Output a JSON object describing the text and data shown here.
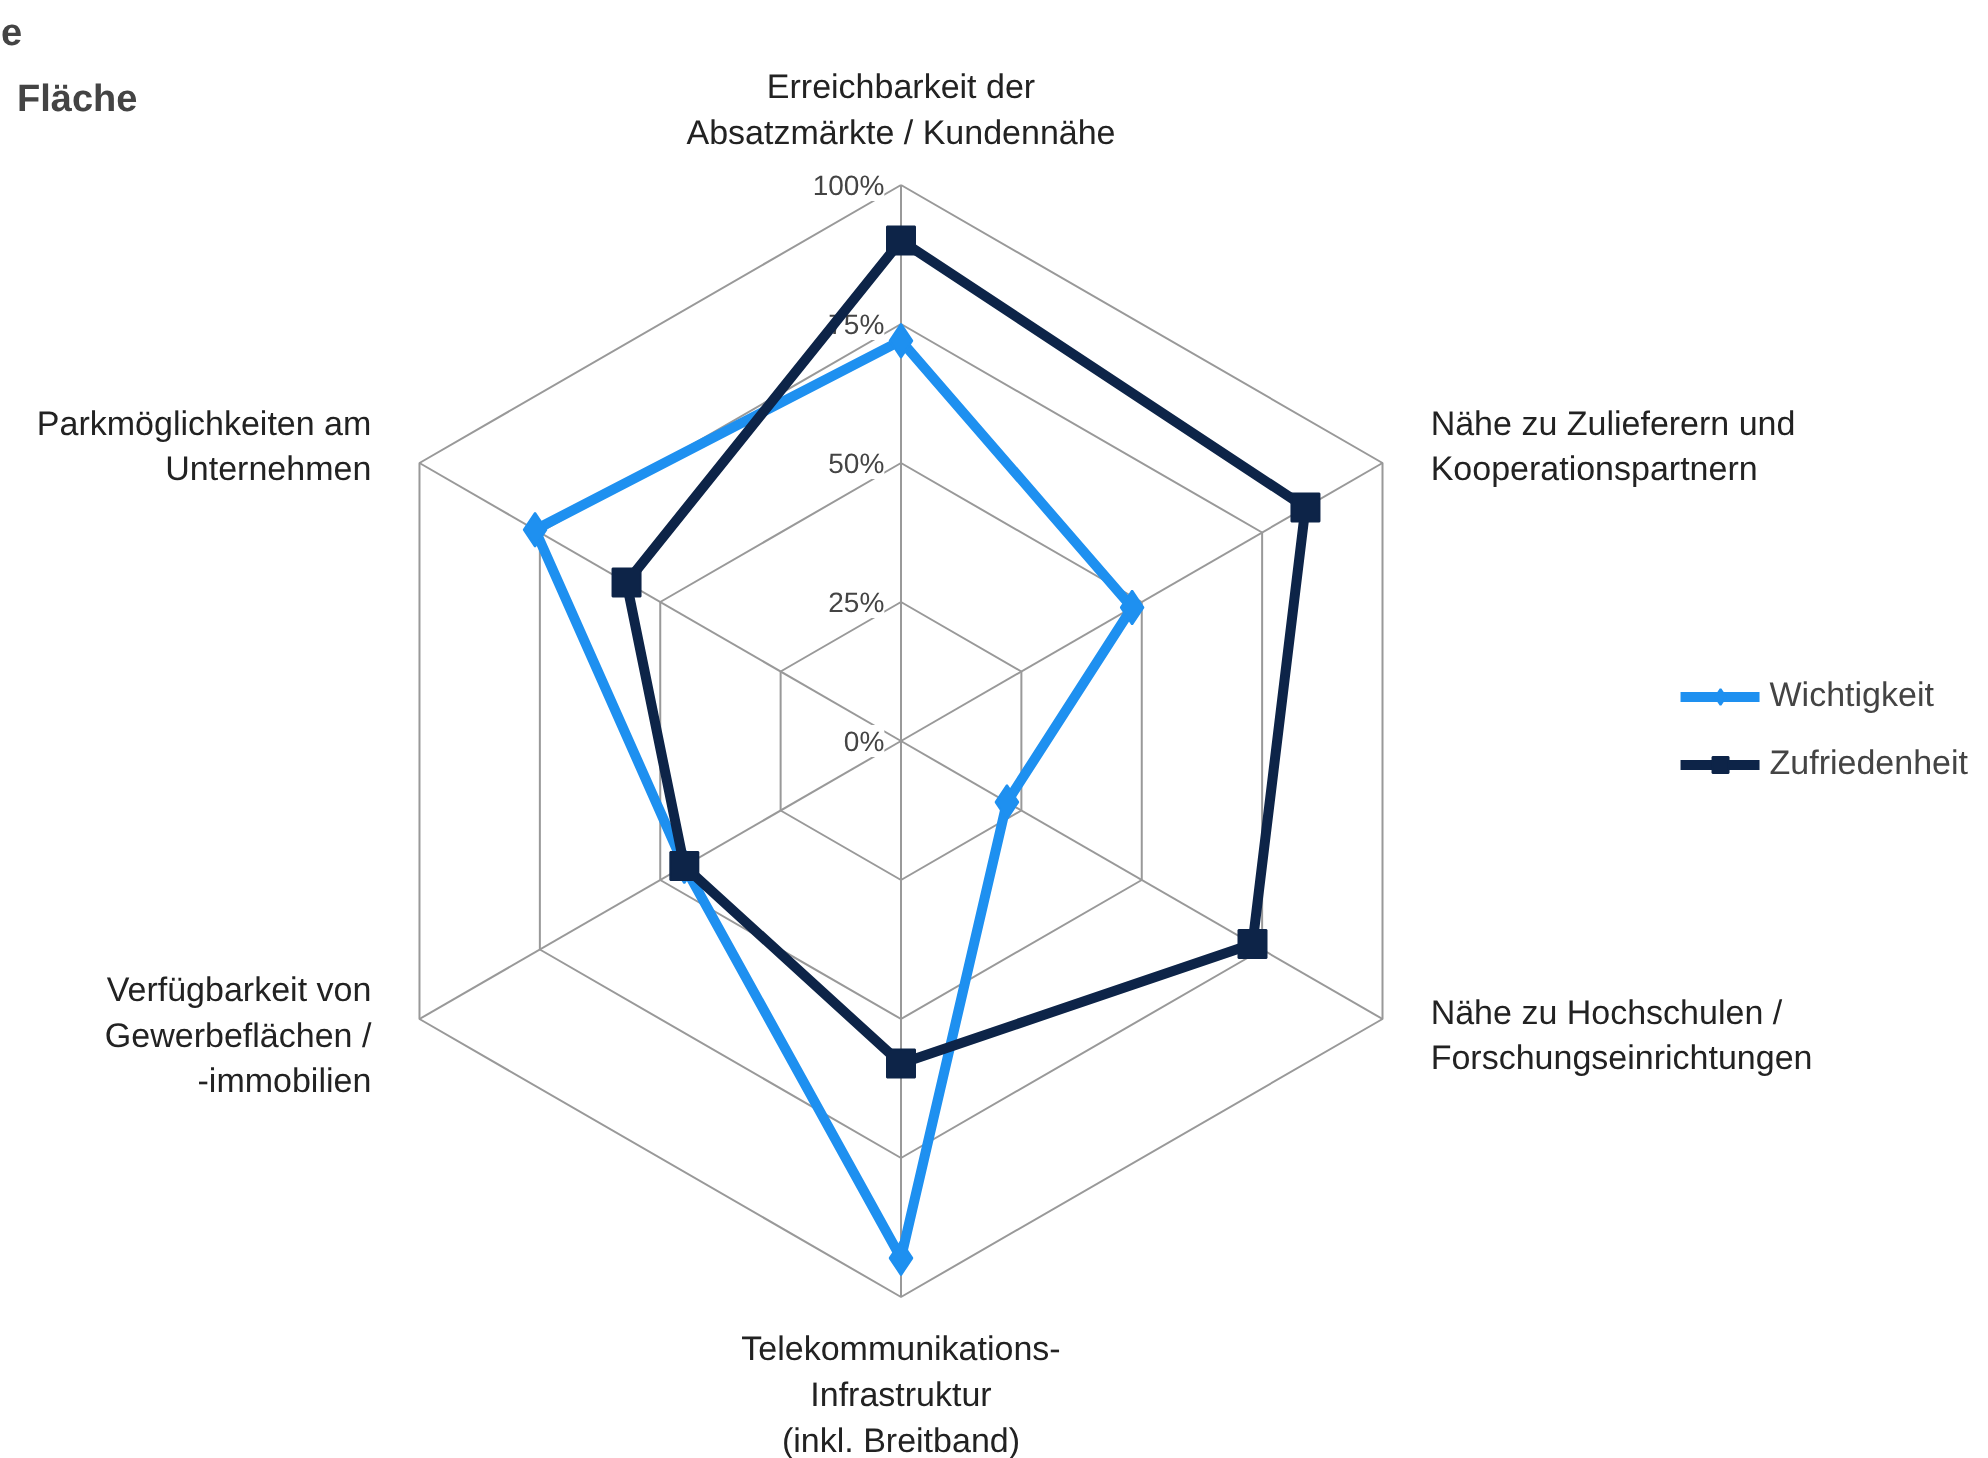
{
  "chart_data": {
    "type": "radar",
    "title": "e",
    "subtitle": "Fläche",
    "categories": [
      "Erreichbarkeit der\nAbsatzmärkte / Kundennähe",
      "Nähe zu Zulieferern und\nKooperationspartnern",
      "Nähe zu Hochschulen /\nForschungseinrichtungen",
      "Telekommunikations-\nInfrastruktur\n(inkl. Breitband)",
      "Verfügbarkeit von\nGewerbeflächen /\n-immobilien",
      "Parkmöglichkeiten am\nUnternehmen"
    ],
    "series": [
      {
        "name": "Wichtigkeit",
        "color": "#1e90f0",
        "marker": "diamond",
        "values": [
          72,
          48,
          22,
          93,
          45,
          76
        ]
      },
      {
        "name": "Zufriedenheit",
        "color": "#0d2448",
        "marker": "square",
        "values": [
          90,
          84,
          73,
          58,
          45,
          57
        ]
      }
    ],
    "ylim": [
      0,
      100
    ],
    "yticks": [
      {
        "value": 0,
        "label": "0%"
      },
      {
        "value": 25,
        "label": "25%"
      },
      {
        "value": 50,
        "label": "50%"
      },
      {
        "value": 75,
        "label": "75%"
      },
      {
        "value": 100,
        "label": "100%"
      }
    ],
    "grid": true,
    "legend": "right"
  }
}
